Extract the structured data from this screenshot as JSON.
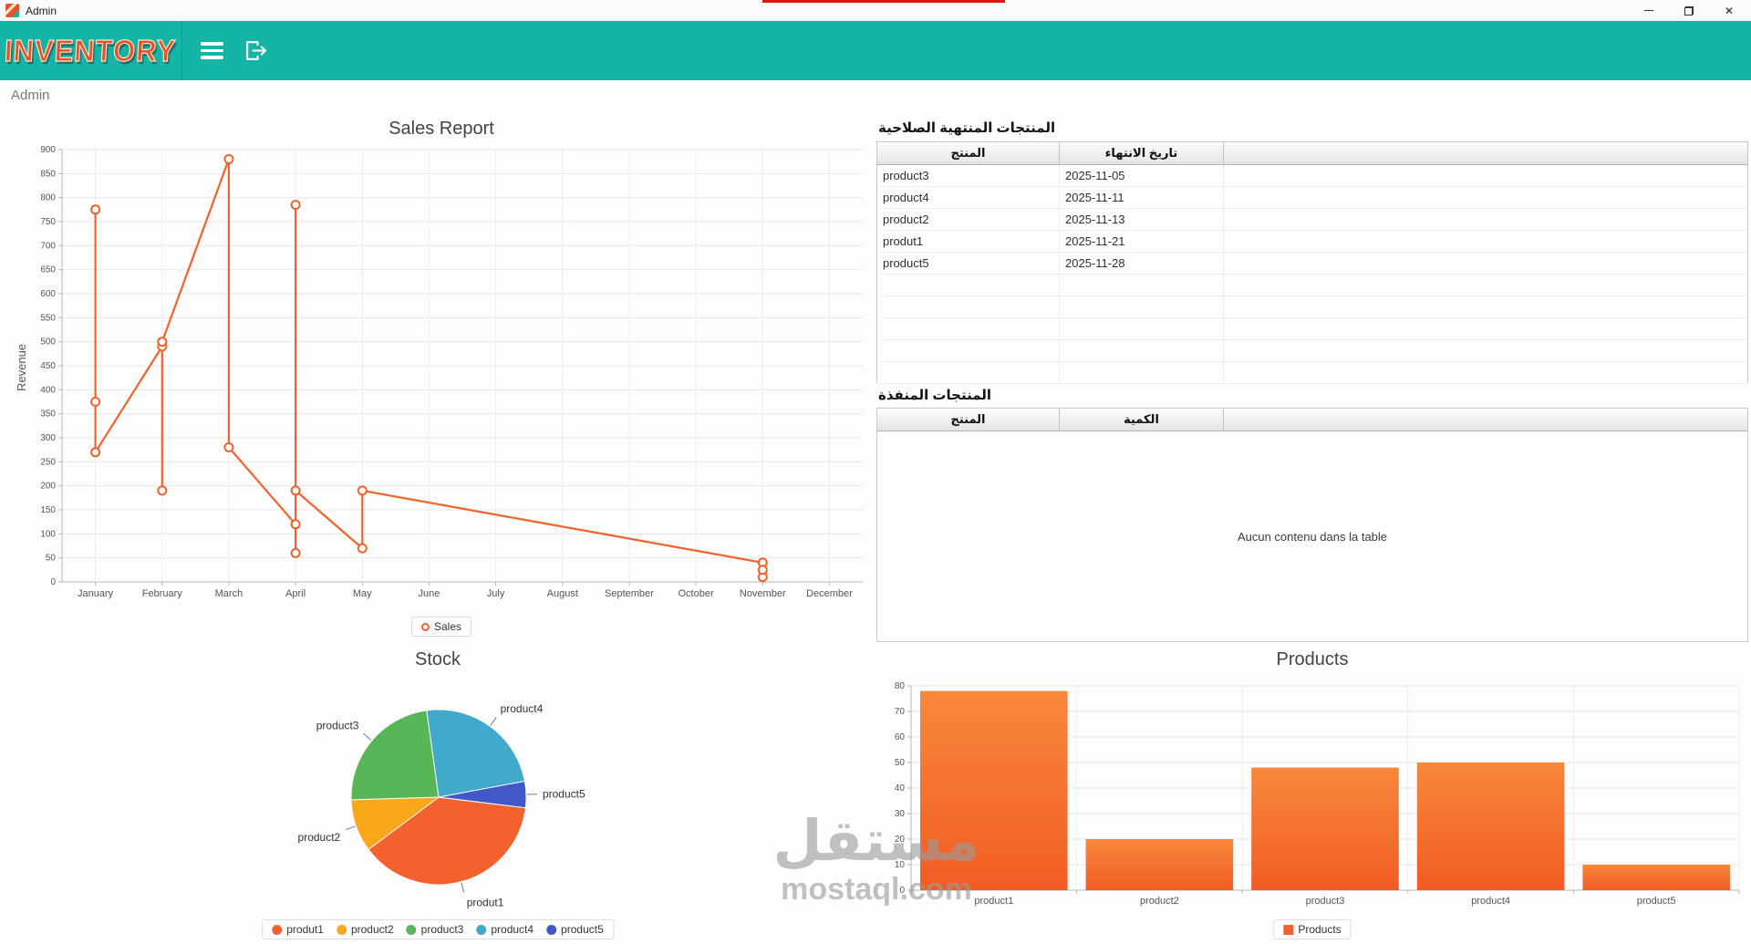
{
  "window": {
    "title": "Admin"
  },
  "header": {
    "logo": "INVENTORY"
  },
  "breadcrumb": "Admin",
  "colors": {
    "header_teal": "#14b4a6",
    "logo_orange": "#e8512d",
    "chart_orange": "#f3622d"
  },
  "expired_table": {
    "title": "المنتجات المنتهية الصلاحية",
    "columns": [
      "المنتج",
      "تاريخ الانتهاء"
    ],
    "rows": [
      [
        "product3",
        "2025-11-05"
      ],
      [
        "product4",
        "2025-11-11"
      ],
      [
        "product2",
        "2025-11-13"
      ],
      [
        "produt1",
        "2025-11-21"
      ],
      [
        "product5",
        "2025-11-28"
      ]
    ],
    "empty_rows": 5
  },
  "depleted_table": {
    "title": "المنتجات المنفذة",
    "columns": [
      "المنتج",
      "الكمية"
    ],
    "placeholder": "Aucun contenu dans la table"
  },
  "watermark": {
    "arabic": "مستقل",
    "latin": "mostaql.com"
  },
  "chart_data": [
    {
      "type": "line",
      "title": "Sales Report",
      "xlabel": "",
      "ylabel": "Revenue",
      "ylim": [
        0,
        900
      ],
      "ytick_step": 50,
      "categories": [
        "January",
        "February",
        "March",
        "April",
        "May",
        "June",
        "July",
        "August",
        "September",
        "October",
        "November",
        "December"
      ],
      "legend": [
        "Sales"
      ],
      "color": "#f3622d",
      "series": [
        {
          "name": "Sales",
          "points": [
            [
              0,
              775
            ],
            [
              0,
              375
            ],
            [
              0,
              270
            ],
            [
              1,
              490
            ],
            [
              1,
              190
            ],
            [
              1,
              500
            ],
            [
              2,
              880
            ],
            [
              2,
              280
            ],
            [
              3,
              120
            ],
            [
              3,
              785
            ],
            [
              3,
              60
            ],
            [
              3,
              190
            ],
            [
              4,
              70
            ],
            [
              4,
              190
            ],
            [
              10,
              40
            ],
            [
              10,
              10
            ],
            [
              10,
              25
            ]
          ]
        }
      ]
    },
    {
      "type": "pie",
      "title": "Stock",
      "labels": [
        "produt1",
        "product2",
        "product3",
        "product4",
        "product5"
      ],
      "values": [
        78,
        20,
        48,
        50,
        10
      ],
      "colors": [
        "#f3622d",
        "#fba71b",
        "#57b757",
        "#41a9c9",
        "#4258c9"
      ],
      "start_angle": 97,
      "legend_position": "bottom"
    },
    {
      "type": "bar",
      "title": "Products",
      "categories": [
        "product1",
        "product2",
        "product3",
        "product4",
        "product5"
      ],
      "values": [
        78,
        20,
        48,
        50,
        10
      ],
      "ylim": [
        0,
        80
      ],
      "ytick_step": 10,
      "legend": [
        "Products"
      ],
      "color": "#f3622d"
    }
  ]
}
